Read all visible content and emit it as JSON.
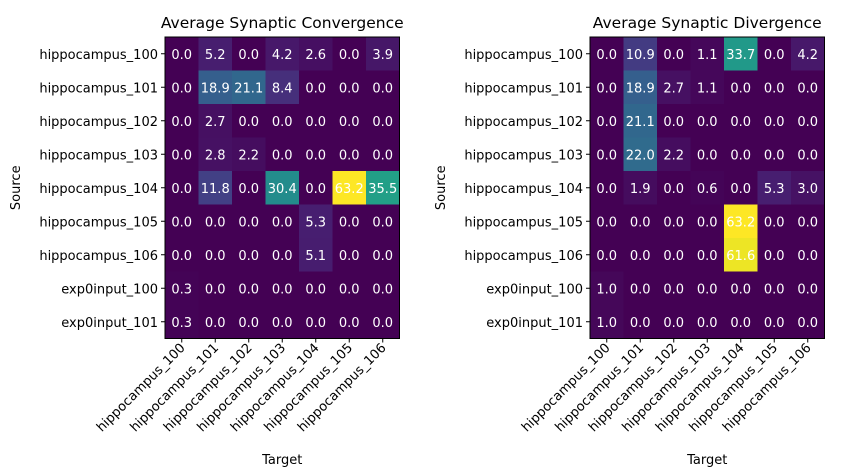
{
  "chart_data": [
    {
      "type": "heatmap",
      "title": "Average Synaptic Convergence",
      "xlabel": "Target",
      "ylabel": "Source",
      "x_categories": [
        "hippocampus_100",
        "hippocampus_101",
        "hippocampus_102",
        "hippocampus_103",
        "hippocampus_104",
        "hippocampus_105",
        "hippocampus_106"
      ],
      "y_categories": [
        "hippocampus_100",
        "hippocampus_101",
        "hippocampus_102",
        "hippocampus_103",
        "hippocampus_104",
        "hippocampus_105",
        "hippocampus_106",
        "exp0input_100",
        "exp0input_101"
      ],
      "colormap": "viridis",
      "vmax": 63.2,
      "values": [
        [
          0.0,
          5.2,
          0.0,
          4.2,
          2.6,
          0.0,
          3.9
        ],
        [
          0.0,
          18.9,
          21.1,
          8.4,
          0.0,
          0.0,
          0.0
        ],
        [
          0.0,
          2.7,
          0.0,
          0.0,
          0.0,
          0.0,
          0.0
        ],
        [
          0.0,
          2.8,
          2.2,
          0.0,
          0.0,
          0.0,
          0.0
        ],
        [
          0.0,
          11.8,
          0.0,
          30.4,
          0.0,
          63.2,
          35.5
        ],
        [
          0.0,
          0.0,
          0.0,
          0.0,
          5.3,
          0.0,
          0.0
        ],
        [
          0.0,
          0.0,
          0.0,
          0.0,
          5.1,
          0.0,
          0.0
        ],
        [
          0.3,
          0.0,
          0.0,
          0.0,
          0.0,
          0.0,
          0.0
        ],
        [
          0.3,
          0.0,
          0.0,
          0.0,
          0.0,
          0.0,
          0.0
        ]
      ]
    },
    {
      "type": "heatmap",
      "title": "Average Synaptic Divergence",
      "xlabel": "Target",
      "ylabel": "Source",
      "x_categories": [
        "hippocampus_100",
        "hippocampus_101",
        "hippocampus_102",
        "hippocampus_103",
        "hippocampus_104",
        "hippocampus_105",
        "hippocampus_106"
      ],
      "y_categories": [
        "hippocampus_100",
        "hippocampus_101",
        "hippocampus_102",
        "hippocampus_103",
        "hippocampus_104",
        "hippocampus_105",
        "hippocampus_106",
        "exp0input_100",
        "exp0input_101"
      ],
      "colormap": "viridis",
      "vmax": 63.2,
      "values": [
        [
          0.0,
          10.9,
          0.0,
          1.1,
          33.7,
          0.0,
          4.2
        ],
        [
          0.0,
          18.9,
          2.7,
          1.1,
          0.0,
          0.0,
          0.0
        ],
        [
          0.0,
          21.1,
          0.0,
          0.0,
          0.0,
          0.0,
          0.0
        ],
        [
          0.0,
          22.0,
          2.2,
          0.0,
          0.0,
          0.0,
          0.0
        ],
        [
          0.0,
          1.9,
          0.0,
          0.6,
          0.0,
          5.3,
          3.0
        ],
        [
          0.0,
          0.0,
          0.0,
          0.0,
          63.2,
          0.0,
          0.0
        ],
        [
          0.0,
          0.0,
          0.0,
          0.0,
          61.6,
          0.0,
          0.0
        ],
        [
          1.0,
          0.0,
          0.0,
          0.0,
          0.0,
          0.0,
          0.0
        ],
        [
          1.0,
          0.0,
          0.0,
          0.0,
          0.0,
          0.0,
          0.0
        ]
      ]
    }
  ]
}
